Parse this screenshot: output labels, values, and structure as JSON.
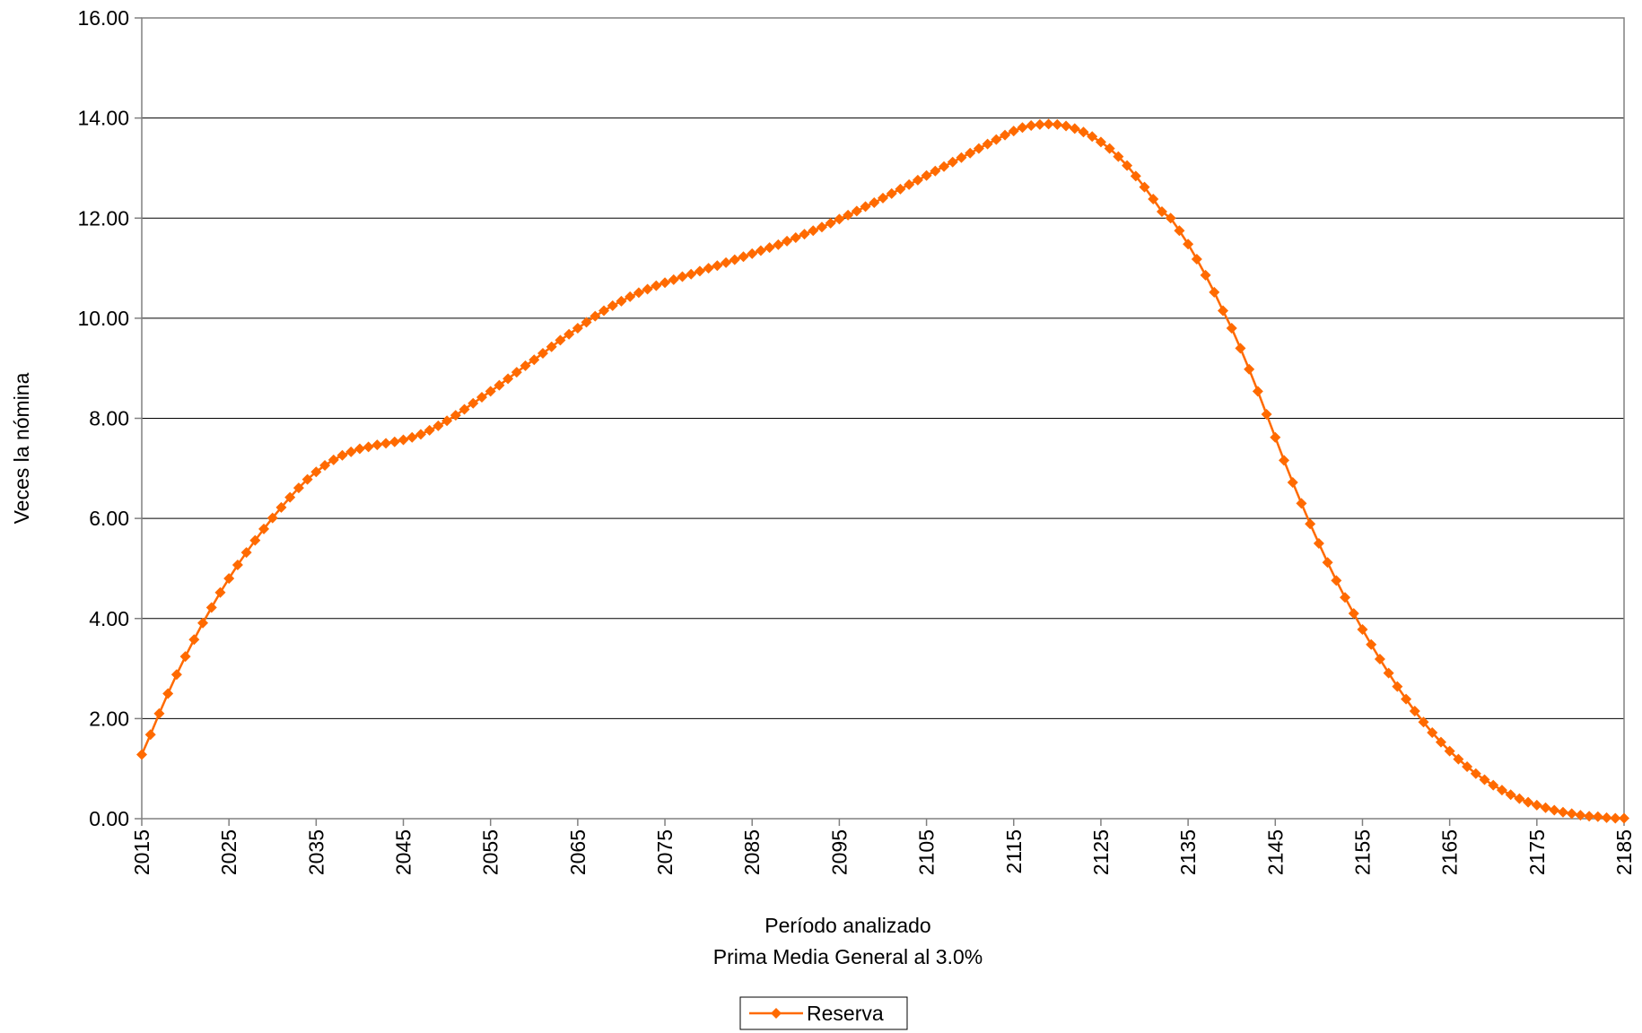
{
  "chart_data": {
    "type": "line",
    "xlabel": "Período analizado",
    "subtitle": "Prima Media General al 3.0%",
    "ylabel": "Veces la nómina",
    "x": [
      2015,
      2016,
      2017,
      2018,
      2019,
      2020,
      2021,
      2022,
      2023,
      2024,
      2025,
      2026,
      2027,
      2028,
      2029,
      2030,
      2031,
      2032,
      2033,
      2034,
      2035,
      2036,
      2037,
      2038,
      2039,
      2040,
      2041,
      2042,
      2043,
      2044,
      2045,
      2046,
      2047,
      2048,
      2049,
      2050,
      2051,
      2052,
      2053,
      2054,
      2055,
      2056,
      2057,
      2058,
      2059,
      2060,
      2061,
      2062,
      2063,
      2064,
      2065,
      2066,
      2067,
      2068,
      2069,
      2070,
      2071,
      2072,
      2073,
      2074,
      2075,
      2076,
      2077,
      2078,
      2079,
      2080,
      2081,
      2082,
      2083,
      2084,
      2085,
      2086,
      2087,
      2088,
      2089,
      2090,
      2091,
      2092,
      2093,
      2094,
      2095,
      2096,
      2097,
      2098,
      2099,
      2100,
      2101,
      2102,
      2103,
      2104,
      2105,
      2106,
      2107,
      2108,
      2109,
      2110,
      2111,
      2112,
      2113,
      2114,
      2115,
      2116,
      2117,
      2118,
      2119,
      2120,
      2121,
      2122,
      2123,
      2124,
      2125,
      2126,
      2127,
      2128,
      2129,
      2130,
      2131,
      2132,
      2133,
      2134,
      2135,
      2136,
      2137,
      2138,
      2139,
      2140,
      2141,
      2142,
      2143,
      2144,
      2145,
      2146,
      2147,
      2148,
      2149,
      2150,
      2151,
      2152,
      2153,
      2154,
      2155,
      2156,
      2157,
      2158,
      2159,
      2160,
      2161,
      2162,
      2163,
      2164,
      2165,
      2166,
      2167,
      2168,
      2169,
      2170,
      2171,
      2172,
      2173,
      2174,
      2175,
      2176,
      2177,
      2178,
      2179,
      2180,
      2181,
      2182,
      2183,
      2184,
      2185
    ],
    "series": [
      {
        "name": "Reserva",
        "color": "#ff6a00",
        "values": [
          1.28,
          1.68,
          2.1,
          2.5,
          2.88,
          3.24,
          3.58,
          3.91,
          4.22,
          4.52,
          4.8,
          5.07,
          5.32,
          5.56,
          5.79,
          6.01,
          6.22,
          6.42,
          6.61,
          6.78,
          6.93,
          7.06,
          7.17,
          7.26,
          7.33,
          7.39,
          7.43,
          7.47,
          7.5,
          7.53,
          7.57,
          7.62,
          7.68,
          7.76,
          7.85,
          7.95,
          8.06,
          8.18,
          8.3,
          8.42,
          8.54,
          8.66,
          8.79,
          8.92,
          9.05,
          9.17,
          9.3,
          9.43,
          9.56,
          9.68,
          9.8,
          9.92,
          10.04,
          10.15,
          10.25,
          10.34,
          10.43,
          10.51,
          10.58,
          10.65,
          10.71,
          10.77,
          10.83,
          10.88,
          10.94,
          11.0,
          11.05,
          11.11,
          11.17,
          11.23,
          11.29,
          11.35,
          11.41,
          11.47,
          11.54,
          11.61,
          11.68,
          11.75,
          11.82,
          11.9,
          11.98,
          12.06,
          12.14,
          12.23,
          12.31,
          12.4,
          12.49,
          12.58,
          12.67,
          12.76,
          12.85,
          12.94,
          13.03,
          13.12,
          13.21,
          13.3,
          13.39,
          13.48,
          13.57,
          13.66,
          13.74,
          13.81,
          13.85,
          13.87,
          13.88,
          13.87,
          13.84,
          13.79,
          13.72,
          13.63,
          13.52,
          13.39,
          13.23,
          13.05,
          12.84,
          12.62,
          12.38,
          12.13,
          12.0,
          11.75,
          11.48,
          11.18,
          10.86,
          10.52,
          10.15,
          9.8,
          9.4,
          8.98,
          8.54,
          8.08,
          7.62,
          7.16,
          6.72,
          6.3,
          5.89,
          5.5,
          5.12,
          4.76,
          4.42,
          4.1,
          3.78,
          3.48,
          3.19,
          2.91,
          2.64,
          2.39,
          2.15,
          1.93,
          1.72,
          1.53,
          1.35,
          1.19,
          1.04,
          0.9,
          0.78,
          0.67,
          0.57,
          0.48,
          0.4,
          0.33,
          0.27,
          0.22,
          0.17,
          0.13,
          0.1,
          0.07,
          0.05,
          0.04,
          0.02,
          0.01,
          0.01
        ]
      }
    ],
    "xlim": [
      2015,
      2185
    ],
    "xticks": [
      2015,
      2025,
      2035,
      2045,
      2055,
      2065,
      2075,
      2085,
      2095,
      2105,
      2115,
      2125,
      2135,
      2145,
      2155,
      2165,
      2175,
      2185
    ],
    "ylim": [
      0,
      16
    ],
    "yticks": [
      {
        "value": 0,
        "label": "0.00"
      },
      {
        "value": 2,
        "label": "2.00"
      },
      {
        "value": 4,
        "label": "4.00"
      },
      {
        "value": 6,
        "label": "6.00"
      },
      {
        "value": 8,
        "label": "8.00"
      },
      {
        "value": 10,
        "label": "10.00"
      },
      {
        "value": 12,
        "label": "12.00"
      },
      {
        "value": 14,
        "label": "14.00"
      },
      {
        "value": 16,
        "label": "16.00"
      }
    ],
    "grid": true,
    "legend": "bottom"
  }
}
